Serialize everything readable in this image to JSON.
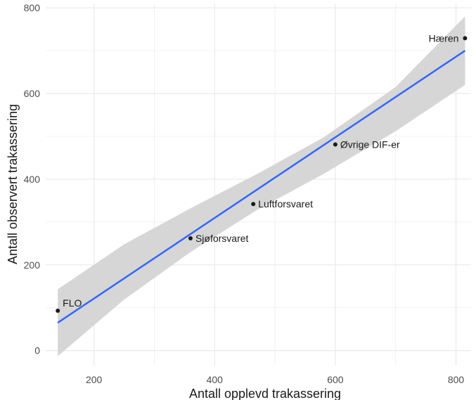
{
  "chart_data": {
    "type": "scatter",
    "xlabel": "Antall opplevd trakassering",
    "ylabel": "Antall observert trakassering",
    "xlim": [
      120,
      825
    ],
    "ylim": [
      -35,
      810
    ],
    "x_ticks": [
      200,
      400,
      600,
      800
    ],
    "y_ticks": [
      0,
      200,
      400,
      600,
      800
    ],
    "grid": true,
    "points": [
      {
        "label": "FLO",
        "x": 140,
        "y": 93
      },
      {
        "label": "Sjøforsvaret",
        "x": 360,
        "y": 262
      },
      {
        "label": "Luftforsvaret",
        "x": 464,
        "y": 342
      },
      {
        "label": "Øvrige DIF-er",
        "x": 600,
        "y": 481
      },
      {
        "label": "Hæren",
        "x": 815,
        "y": 729
      }
    ],
    "trend_line": {
      "method": "linear",
      "x": [
        140,
        815
      ],
      "y": [
        65,
        700
      ]
    },
    "confidence_band": {
      "x": [
        140,
        250,
        360,
        470,
        580,
        700,
        815
      ],
      "lower": [
        -13,
        119,
        230,
        328,
        412,
        512,
        620
      ],
      "upper": [
        143,
        248,
        332,
        412,
        497,
        615,
        780
      ]
    },
    "colors": {
      "line": "#3366ff",
      "band": "#d4d4d4",
      "point": "#1a1a1a",
      "grid": "#ebebeb"
    }
  }
}
